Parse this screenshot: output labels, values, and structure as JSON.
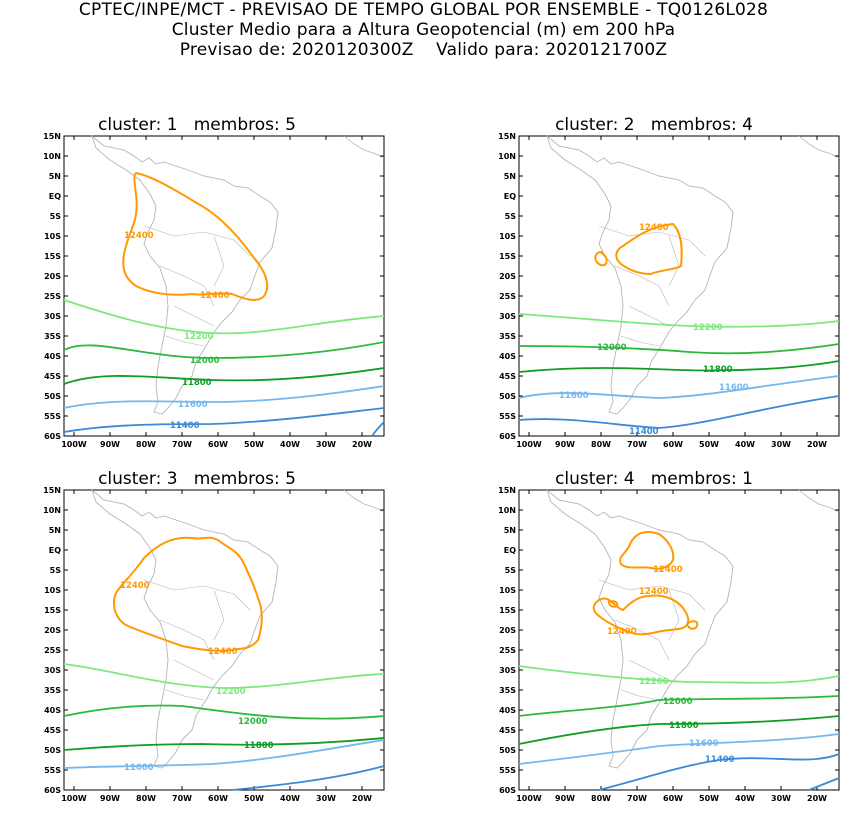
{
  "header": {
    "line1": "CPTEC/INPE/MCT - PREVISAO DE TEMPO GLOBAL POR ENSEMBLE - TQ0126L028",
    "line2": "Cluster Medio para a Altura Geopotencial (m) em 200 hPa",
    "line3_left": "Previsao de: 2020120300Z",
    "line3_right": "Valido para: 2020121700Z"
  },
  "axes": {
    "lat_ticks": [
      "15N",
      "10N",
      "5N",
      "EQ",
      "5S",
      "10S",
      "15S",
      "20S",
      "25S",
      "30S",
      "35S",
      "40S",
      "45S",
      "50S",
      "55S",
      "60S"
    ],
    "lon_ticks": [
      "100W",
      "90W",
      "80W",
      "70W",
      "60W",
      "50W",
      "40W",
      "30W",
      "20W"
    ]
  },
  "colors": {
    "c12400": "#ff9900",
    "c12200": "#7ee87e",
    "c12000": "#2db83d",
    "c11800": "#0f9d27",
    "c11600": "#75b7ef",
    "c11400": "#3a8ad8",
    "coast": "#b5b5b5"
  },
  "panels": [
    {
      "title": "cluster: 1   membros: 5",
      "labels": [
        "12400",
        "12400",
        "12200",
        "12000",
        "11800",
        "11600",
        "11400"
      ]
    },
    {
      "title": "cluster: 2   membros: 4",
      "labels": [
        "12400",
        "12200",
        "12000",
        "11800",
        "11600",
        "11600",
        "11400"
      ]
    },
    {
      "title": "cluster: 3   membros: 5",
      "labels": [
        "12400",
        "12400",
        "12200",
        "12000",
        "11800",
        "11600"
      ]
    },
    {
      "title": "cluster: 4   membros: 1",
      "labels": [
        "12400",
        "12400",
        "12400",
        "12200",
        "12000",
        "11800",
        "11600",
        "11400"
      ]
    }
  ]
}
